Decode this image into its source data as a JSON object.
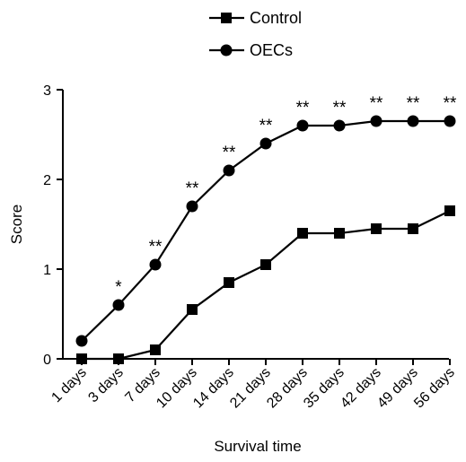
{
  "chart_data": {
    "type": "line",
    "title": "",
    "xlabel": "Survival time",
    "ylabel": "Score",
    "ylim": [
      0,
      3
    ],
    "yticks": [
      "0",
      "1",
      "2",
      "3"
    ],
    "grid": false,
    "legend_position": "top-center",
    "categories": [
      "1 days",
      "3 days",
      "7 days",
      "10 days",
      "14 days",
      "21 days",
      "28 days",
      "35 days",
      "42 days",
      "49 days",
      "56 days"
    ],
    "series": [
      {
        "name": "Control",
        "marker": "square",
        "color": "#000000",
        "values": [
          0,
          0,
          0.1,
          0.55,
          0.85,
          1.05,
          1.4,
          1.4,
          1.45,
          1.45,
          1.65
        ]
      },
      {
        "name": "OECs",
        "marker": "circle",
        "color": "#000000",
        "values": [
          0.2,
          0.6,
          1.05,
          1.7,
          2.1,
          2.4,
          2.6,
          2.6,
          2.65,
          2.65,
          2.65
        ]
      }
    ],
    "annotations": [
      "",
      "*",
      "**",
      "**",
      "**",
      "**",
      "**",
      "**",
      "**",
      "**",
      "**"
    ]
  }
}
